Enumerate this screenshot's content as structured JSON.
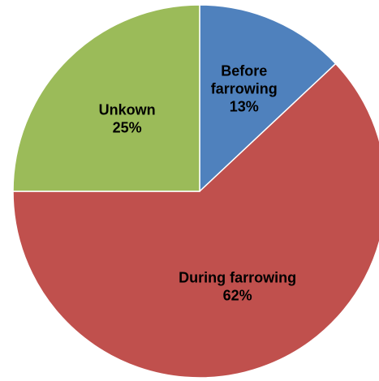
{
  "chart_data": {
    "type": "pie",
    "title": "",
    "slices": [
      {
        "label_lines": [
          "Before",
          "farrowing"
        ],
        "value_label": "13%",
        "value": 13,
        "color": "#4F81BD"
      },
      {
        "label_lines": [
          "During farrowing"
        ],
        "value_label": "62%",
        "value": 62,
        "color": "#C0504D"
      },
      {
        "label_lines": [
          "Unkown"
        ],
        "value_label": "25%",
        "value": 25,
        "color": "#9BBB59"
      }
    ],
    "start_angle": "12 o'clock",
    "direction": "clockwise",
    "legend": "none"
  }
}
